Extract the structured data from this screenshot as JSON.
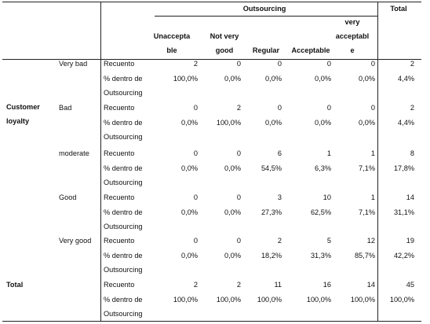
{
  "header": {
    "outsourcing": "Outsourcing",
    "total": "Total",
    "columns": [
      [
        "Unaccepta",
        "ble"
      ],
      [
        "Not very",
        "good"
      ],
      [
        "Regular"
      ],
      [
        "Acceptable"
      ],
      [
        "very",
        "acceptabl",
        "e"
      ]
    ]
  },
  "row_group": [
    "Customer",
    "loyalty"
  ],
  "stat_labels": {
    "count": "Recuento",
    "pct": [
      "% dentro de",
      "Outsourcing"
    ]
  },
  "rows": [
    {
      "label": "Very bad",
      "counts": [
        "2",
        "0",
        "0",
        "0",
        "0",
        "2"
      ],
      "pcts": [
        "100,0%",
        "0,0%",
        "0,0%",
        "0,0%",
        "0,0%",
        "4,4%"
      ]
    },
    {
      "label": "Bad",
      "counts": [
        "0",
        "2",
        "0",
        "0",
        "0",
        "2"
      ],
      "pcts": [
        "0,0%",
        "100,0%",
        "0,0%",
        "0,0%",
        "0,0%",
        "4,4%"
      ]
    },
    {
      "label": "moderate",
      "counts": [
        "0",
        "0",
        "6",
        "1",
        "1",
        "8"
      ],
      "pcts": [
        "0,0%",
        "0,0%",
        "54,5%",
        "6,3%",
        "7,1%",
        "17,8%"
      ]
    },
    {
      "label": "Good",
      "counts": [
        "0",
        "0",
        "3",
        "10",
        "1",
        "14"
      ],
      "pcts": [
        "0,0%",
        "0,0%",
        "27,3%",
        "62,5%",
        "7,1%",
        "31,1%"
      ]
    },
    {
      "label": "Very good",
      "counts": [
        "0",
        "0",
        "2",
        "5",
        "12",
        "19"
      ],
      "pcts": [
        "0,0%",
        "0,0%",
        "18,2%",
        "31,3%",
        "85,7%",
        "42,2%"
      ]
    }
  ],
  "total_row": {
    "label": "Total",
    "counts": [
      "2",
      "2",
      "11",
      "16",
      "14",
      "45"
    ],
    "pcts": [
      "100,0%",
      "100,0%",
      "100,0%",
      "100,0%",
      "100,0%",
      "100,0%"
    ]
  }
}
